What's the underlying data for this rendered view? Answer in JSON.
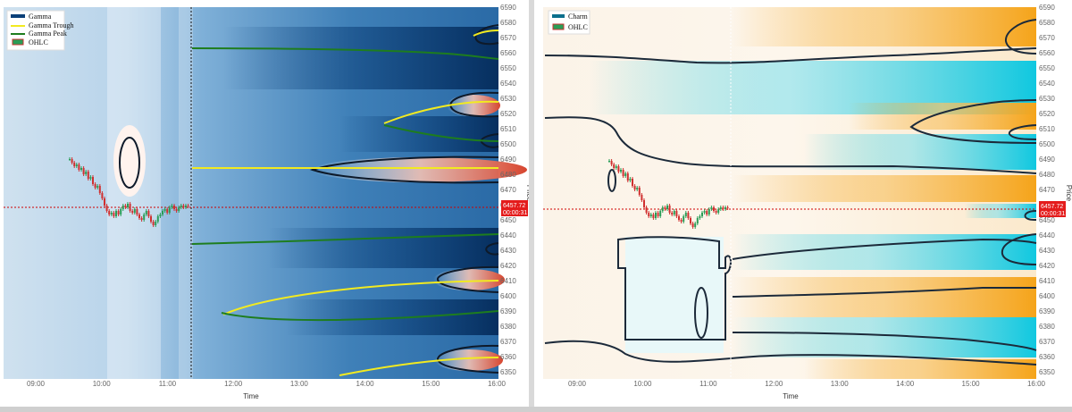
{
  "chart_data": [
    {
      "type": "heatmap",
      "panel": "left",
      "xlabel": "Time",
      "ylabel": "Price",
      "x_ticks": [
        "09:00",
        "10:00",
        "11:00",
        "12:00",
        "13:00",
        "14:00",
        "15:00",
        "16:00"
      ],
      "y_ticks": [
        6590,
        6580,
        6570,
        6560,
        6550,
        6540,
        6530,
        6520,
        6510,
        6500,
        6490,
        6480,
        6470,
        6460,
        6450,
        6440,
        6430,
        6420,
        6410,
        6400,
        6390,
        6380,
        6370,
        6360,
        6350
      ],
      "ylim": [
        6345,
        6592
      ],
      "legend": [
        "Gamma",
        "Gamma Trough",
        "Gamma Peak",
        "OHLC"
      ],
      "legend_position": "top-left",
      "price_label": "6457.72",
      "countdown_label": "00:00:31",
      "last_price": 6457.72,
      "now_line_time": "11:20",
      "colors": {
        "negative": "#0b3f78",
        "neutral": "#ffffff",
        "positive": "#d6452f",
        "trough": "#f2ea20",
        "peak": "#1e7d1e",
        "price_line": "#d00000"
      }
    },
    {
      "type": "heatmap",
      "panel": "right",
      "xlabel": "Time",
      "ylabel": "Price",
      "x_ticks": [
        "09:00",
        "10:00",
        "11:00",
        "12:00",
        "13:00",
        "14:00",
        "15:00",
        "16:00"
      ],
      "y_ticks": [
        6590,
        6580,
        6570,
        6560,
        6550,
        6540,
        6530,
        6520,
        6510,
        6500,
        6490,
        6480,
        6470,
        6460,
        6450,
        6440,
        6430,
        6420,
        6410,
        6400,
        6390,
        6380,
        6370,
        6360,
        6350
      ],
      "ylim": [
        6345,
        6592
      ],
      "legend": [
        "Charm",
        "OHLC"
      ],
      "legend_position": "top-left",
      "price_label": "6457.72",
      "countdown_label": "00:00:31",
      "last_price": 6457.72,
      "colors": {
        "positive": "#f5a41a",
        "neutral": "#fdf4e6",
        "negative": "#10c8e0",
        "contour": "#1c2a3a",
        "price_line": "#d00000"
      }
    }
  ]
}
